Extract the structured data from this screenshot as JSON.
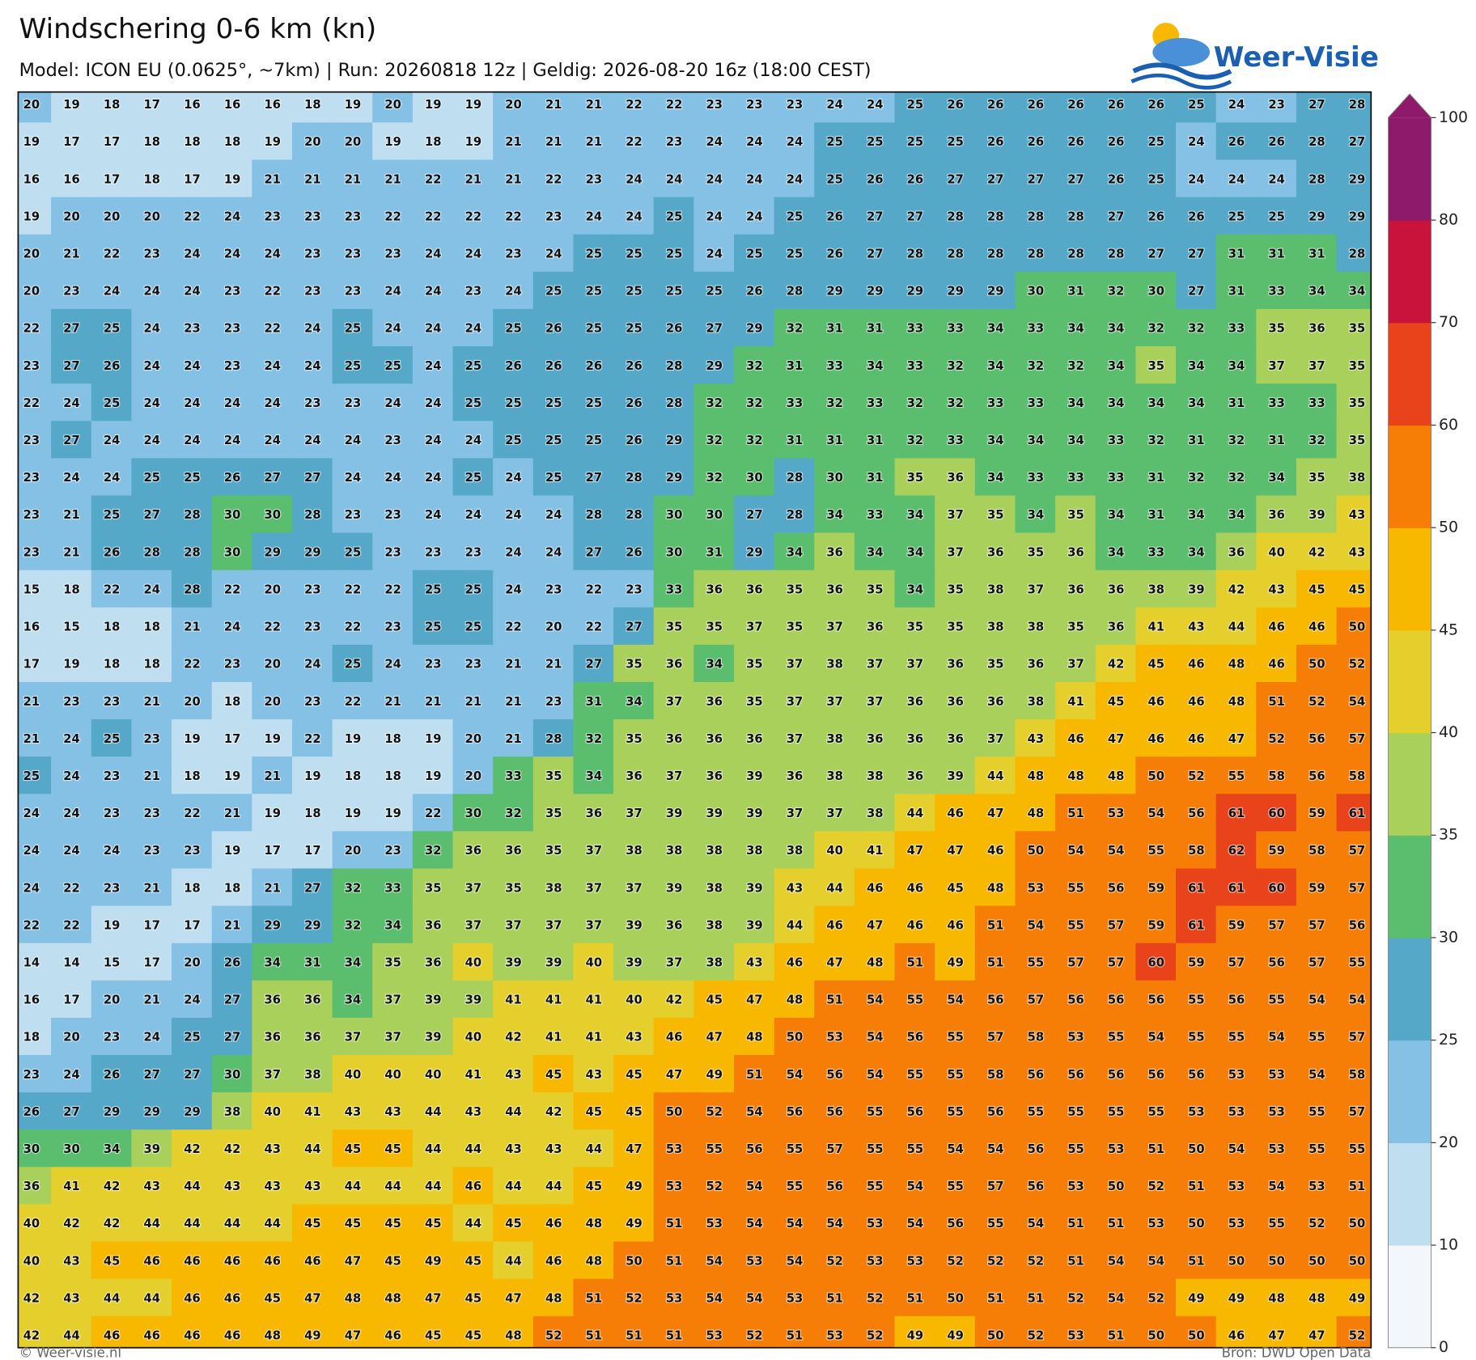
{
  "header": {
    "title": "Windschering 0-6 km (kn)",
    "subtitle": "Model: ICON EU (0.0625°, ~7km)  |  Run: 20260818 12z  |  Geldig: 2026-08-20 16z (18:00 CEST)",
    "logo": "Weer-Visie"
  },
  "footer": {
    "left": "© Weer-visie.nl",
    "right": "Bron: DWD Open Data"
  },
  "colorbar": {
    "ticks": [
      0,
      10,
      20,
      25,
      30,
      35,
      40,
      45,
      50,
      60,
      70,
      80,
      100
    ],
    "colors": [
      "#f3f7fb",
      "#bfdff1",
      "#84c1e5",
      "#55a8c8",
      "#5bbd6e",
      "#a9d05a",
      "#e4cf2d",
      "#f9b800",
      "#f67e06",
      "#e9431b",
      "#c8133a",
      "#8d1a6a"
    ]
  },
  "grid": {
    "rows": [
      [
        20,
        19,
        18,
        17,
        16,
        16,
        16,
        18,
        19,
        20,
        19,
        19,
        20,
        21,
        21,
        22,
        22,
        23,
        23,
        23,
        24,
        24,
        25,
        26,
        26,
        26,
        26,
        26,
        26,
        25,
        24,
        23,
        27,
        28
      ],
      [
        19,
        17,
        17,
        18,
        18,
        18,
        19,
        20,
        20,
        19,
        18,
        19,
        21,
        21,
        21,
        22,
        23,
        24,
        24,
        24,
        25,
        25,
        25,
        25,
        26,
        26,
        26,
        26,
        25,
        24,
        26,
        26,
        28,
        27
      ],
      [
        16,
        16,
        17,
        18,
        17,
        19,
        21,
        21,
        21,
        21,
        22,
        21,
        21,
        22,
        23,
        24,
        24,
        24,
        24,
        24,
        25,
        26,
        26,
        27,
        27,
        27,
        27,
        26,
        25,
        24,
        24,
        24,
        28,
        29
      ],
      [
        19,
        20,
        20,
        20,
        22,
        24,
        23,
        23,
        23,
        22,
        22,
        22,
        22,
        23,
        24,
        24,
        25,
        24,
        24,
        25,
        26,
        27,
        27,
        28,
        28,
        28,
        28,
        27,
        26,
        26,
        25,
        25,
        29,
        29
      ],
      [
        20,
        21,
        22,
        23,
        24,
        24,
        24,
        23,
        23,
        23,
        24,
        24,
        23,
        24,
        25,
        25,
        25,
        24,
        25,
        25,
        26,
        27,
        28,
        28,
        28,
        28,
        28,
        28,
        27,
        27,
        31,
        31,
        31,
        28
      ],
      [
        20,
        23,
        24,
        24,
        24,
        23,
        22,
        23,
        23,
        24,
        24,
        23,
        24,
        25,
        25,
        25,
        25,
        25,
        26,
        28,
        29,
        29,
        29,
        29,
        29,
        30,
        31,
        32,
        30,
        27,
        31,
        33,
        34,
        34
      ],
      [
        22,
        27,
        25,
        24,
        23,
        23,
        22,
        24,
        25,
        24,
        24,
        24,
        25,
        26,
        25,
        25,
        26,
        27,
        29,
        32,
        31,
        31,
        33,
        33,
        34,
        33,
        34,
        34,
        32,
        32,
        33,
        35,
        36,
        35
      ],
      [
        23,
        27,
        26,
        24,
        24,
        23,
        24,
        24,
        25,
        25,
        24,
        25,
        26,
        26,
        26,
        26,
        28,
        29,
        32,
        31,
        33,
        34,
        33,
        32,
        34,
        32,
        32,
        34,
        35,
        34,
        34,
        37,
        37,
        35
      ],
      [
        22,
        24,
        25,
        24,
        24,
        24,
        24,
        23,
        23,
        24,
        24,
        25,
        25,
        25,
        25,
        26,
        28,
        32,
        32,
        33,
        32,
        33,
        32,
        32,
        33,
        33,
        34,
        34,
        34,
        34,
        31,
        33,
        33,
        35
      ],
      [
        23,
        27,
        24,
        24,
        24,
        24,
        24,
        24,
        24,
        23,
        24,
        24,
        25,
        25,
        25,
        26,
        29,
        32,
        32,
        31,
        31,
        31,
        32,
        33,
        34,
        34,
        34,
        33,
        32,
        31,
        32,
        31,
        32,
        35
      ],
      [
        23,
        24,
        24,
        25,
        25,
        26,
        27,
        27,
        24,
        24,
        24,
        25,
        24,
        25,
        27,
        28,
        29,
        32,
        30,
        28,
        30,
        31,
        35,
        36,
        34,
        33,
        33,
        33,
        31,
        32,
        32,
        34,
        35,
        38
      ],
      [
        23,
        21,
        25,
        27,
        28,
        30,
        30,
        28,
        23,
        23,
        24,
        24,
        24,
        24,
        28,
        28,
        30,
        30,
        27,
        28,
        34,
        33,
        34,
        37,
        35,
        34,
        35,
        34,
        31,
        34,
        34,
        36,
        39,
        43
      ],
      [
        23,
        21,
        26,
        28,
        28,
        30,
        29,
        29,
        25,
        23,
        23,
        23,
        24,
        24,
        27,
        26,
        30,
        31,
        29,
        34,
        36,
        34,
        34,
        37,
        36,
        35,
        36,
        34,
        33,
        34,
        36,
        40,
        42,
        43
      ],
      [
        15,
        18,
        22,
        24,
        28,
        22,
        20,
        23,
        22,
        22,
        25,
        25,
        24,
        23,
        22,
        23,
        33,
        36,
        36,
        35,
        36,
        35,
        34,
        35,
        38,
        37,
        36,
        36,
        38,
        39,
        42,
        43,
        45,
        45
      ],
      [
        16,
        15,
        18,
        18,
        21,
        24,
        22,
        23,
        22,
        23,
        25,
        25,
        22,
        20,
        22,
        27,
        35,
        35,
        37,
        35,
        37,
        36,
        35,
        35,
        38,
        38,
        35,
        36,
        41,
        43,
        44,
        46,
        46,
        50
      ],
      [
        17,
        19,
        18,
        18,
        22,
        23,
        20,
        24,
        25,
        24,
        23,
        23,
        21,
        21,
        27,
        35,
        36,
        34,
        35,
        37,
        38,
        37,
        37,
        36,
        35,
        36,
        37,
        42,
        45,
        46,
        48,
        46,
        50,
        52
      ],
      [
        21,
        23,
        23,
        21,
        20,
        18,
        20,
        23,
        22,
        21,
        21,
        21,
        21,
        23,
        31,
        34,
        37,
        36,
        35,
        37,
        37,
        37,
        36,
        36,
        36,
        38,
        41,
        45,
        46,
        46,
        48,
        51,
        52,
        54
      ],
      [
        21,
        24,
        25,
        23,
        19,
        17,
        19,
        22,
        19,
        18,
        19,
        20,
        21,
        28,
        32,
        35,
        36,
        36,
        36,
        37,
        38,
        36,
        36,
        36,
        37,
        43,
        46,
        47,
        46,
        46,
        47,
        52,
        56,
        57
      ],
      [
        25,
        24,
        23,
        21,
        18,
        19,
        21,
        19,
        18,
        18,
        19,
        20,
        33,
        35,
        34,
        36,
        37,
        36,
        39,
        36,
        38,
        38,
        36,
        39,
        44,
        48,
        48,
        48,
        50,
        52,
        55,
        58,
        56,
        58
      ],
      [
        24,
        24,
        23,
        23,
        22,
        21,
        19,
        18,
        19,
        19,
        22,
        30,
        32,
        35,
        36,
        37,
        39,
        39,
        39,
        37,
        37,
        38,
        44,
        46,
        47,
        48,
        51,
        53,
        54,
        56,
        61,
        60,
        59,
        61
      ],
      [
        24,
        24,
        24,
        23,
        23,
        19,
        17,
        17,
        20,
        23,
        32,
        36,
        36,
        35,
        37,
        38,
        38,
        38,
        38,
        38,
        40,
        41,
        47,
        47,
        46,
        50,
        54,
        54,
        55,
        58,
        62,
        59,
        58,
        57
      ],
      [
        24,
        22,
        23,
        21,
        18,
        18,
        21,
        27,
        32,
        33,
        35,
        37,
        35,
        38,
        37,
        37,
        39,
        38,
        39,
        43,
        44,
        46,
        46,
        45,
        48,
        53,
        55,
        56,
        59,
        61,
        61,
        60,
        59,
        57
      ],
      [
        22,
        22,
        19,
        17,
        17,
        21,
        29,
        29,
        32,
        34,
        36,
        37,
        37,
        37,
        37,
        39,
        36,
        38,
        39,
        44,
        46,
        47,
        46,
        46,
        51,
        54,
        55,
        57,
        59,
        61,
        59,
        57,
        57,
        56
      ],
      [
        14,
        14,
        15,
        17,
        20,
        26,
        34,
        31,
        34,
        35,
        36,
        40,
        39,
        39,
        40,
        39,
        37,
        38,
        43,
        46,
        47,
        48,
        51,
        49,
        51,
        55,
        57,
        57,
        60,
        59,
        57,
        56,
        57,
        55
      ],
      [
        16,
        17,
        20,
        21,
        24,
        27,
        36,
        36,
        34,
        37,
        39,
        39,
        41,
        41,
        41,
        40,
        42,
        45,
        47,
        48,
        51,
        54,
        55,
        54,
        56,
        57,
        56,
        56,
        56,
        55,
        56,
        55,
        54,
        54
      ],
      [
        18,
        20,
        23,
        24,
        25,
        27,
        36,
        36,
        37,
        37,
        39,
        40,
        42,
        41,
        41,
        43,
        46,
        47,
        48,
        50,
        53,
        54,
        56,
        55,
        57,
        58,
        53,
        55,
        54,
        55,
        55,
        54,
        55,
        57
      ],
      [
        23,
        24,
        26,
        27,
        27,
        30,
        37,
        38,
        40,
        40,
        40,
        41,
        43,
        45,
        43,
        45,
        47,
        49,
        51,
        54,
        56,
        54,
        55,
        55,
        58,
        56,
        56,
        56,
        56,
        56,
        53,
        53,
        54,
        58
      ],
      [
        26,
        27,
        29,
        29,
        29,
        38,
        40,
        41,
        43,
        43,
        44,
        43,
        44,
        42,
        45,
        45,
        50,
        52,
        54,
        56,
        56,
        55,
        56,
        55,
        56,
        55,
        55,
        55,
        55,
        53,
        53,
        53,
        55,
        57
      ],
      [
        30,
        30,
        34,
        39,
        42,
        42,
        43,
        44,
        45,
        45,
        44,
        44,
        43,
        43,
        44,
        47,
        53,
        55,
        56,
        55,
        57,
        55,
        55,
        54,
        54,
        56,
        55,
        53,
        51,
        50,
        54,
        53,
        55,
        55
      ],
      [
        36,
        41,
        42,
        43,
        44,
        43,
        43,
        43,
        44,
        44,
        44,
        46,
        44,
        44,
        45,
        49,
        53,
        52,
        54,
        55,
        56,
        55,
        54,
        55,
        57,
        56,
        53,
        50,
        52,
        51,
        53,
        54,
        53,
        51
      ],
      [
        40,
        42,
        42,
        44,
        44,
        44,
        44,
        45,
        45,
        45,
        45,
        44,
        45,
        46,
        48,
        49,
        51,
        53,
        54,
        54,
        54,
        53,
        54,
        56,
        55,
        54,
        51,
        51,
        53,
        50,
        53,
        55,
        52,
        50
      ],
      [
        40,
        43,
        45,
        46,
        46,
        46,
        46,
        46,
        47,
        45,
        49,
        45,
        44,
        46,
        48,
        50,
        51,
        54,
        53,
        54,
        52,
        53,
        53,
        52,
        52,
        52,
        51,
        54,
        54,
        51,
        50,
        50,
        50,
        50
      ],
      [
        42,
        43,
        44,
        44,
        46,
        46,
        45,
        47,
        48,
        48,
        47,
        45,
        47,
        48,
        51,
        52,
        53,
        54,
        54,
        53,
        51,
        52,
        51,
        50,
        51,
        51,
        52,
        54,
        52,
        49,
        49,
        48,
        48,
        49
      ],
      [
        42,
        44,
        46,
        46,
        46,
        46,
        48,
        49,
        47,
        46,
        45,
        45,
        48,
        52,
        51,
        51,
        51,
        53,
        52,
        51,
        53,
        52,
        49,
        49,
        50,
        52,
        53,
        51,
        50,
        50,
        46,
        47,
        47,
        52
      ]
    ]
  }
}
